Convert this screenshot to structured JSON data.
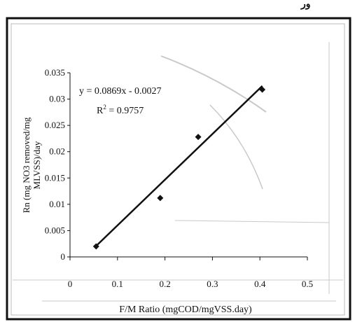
{
  "header": {
    "corner_text": "ﻭﺭ"
  },
  "chart_data": {
    "type": "scatter",
    "title": "",
    "xlabel": "F/M Ratio (mgCOD/mgVSS.day)",
    "ylabel": "Rn (mg NO3 removed/mg MLVSS)/day",
    "xlim": [
      0,
      0.5
    ],
    "ylim": [
      0,
      0.035
    ],
    "x_ticks": [
      "0",
      "0.1",
      "0.2",
      "0.3",
      "0.4",
      "0.5"
    ],
    "y_ticks": [
      "0",
      "0.005",
      "0.01",
      "0.015",
      "0.02",
      "0.025",
      "0.03",
      "0.035"
    ],
    "grid": false,
    "series": [
      {
        "points": [
          [
            0.055,
            0.002
          ],
          [
            0.19,
            0.0112
          ],
          [
            0.27,
            0.0228
          ],
          [
            0.405,
            0.0318
          ]
        ]
      }
    ],
    "trendline": {
      "slope": 0.0869,
      "intercept": -0.0027,
      "x_range": [
        0.055,
        0.405
      ]
    },
    "annotations": {
      "equation": "y = 0.0869x - 0.0027",
      "r2_base": "R",
      "r2_sup": "2",
      "r2_value": " = 0.9757"
    }
  }
}
